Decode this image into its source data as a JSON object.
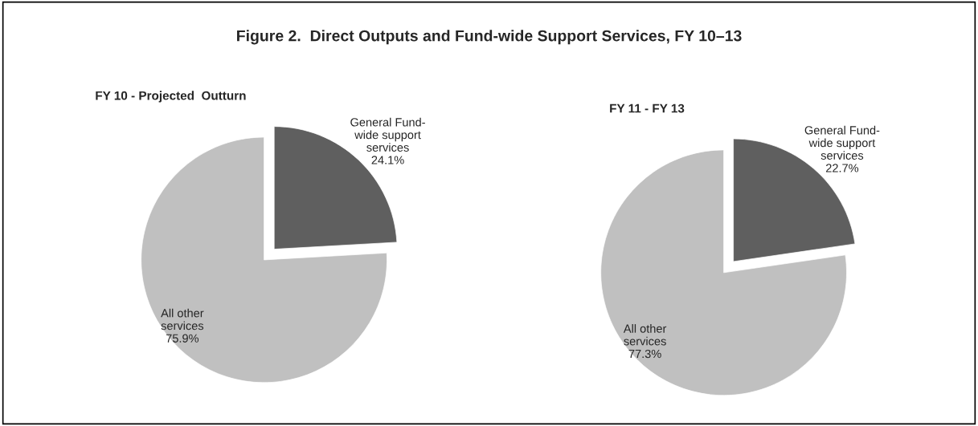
{
  "chart_data": [
    {
      "type": "pie",
      "title": "Figure 2.  Direct Outputs and Fund-wide Support Services, FY 10–13",
      "subtitle": "FY 10 - Projected  Outturn",
      "categories": [
        "General Fund-\nwide support\nservices",
        "All other\nservices"
      ],
      "values": [
        24.1,
        75.9
      ],
      "colors": [
        "#5f5f5f",
        "#c0c0c0"
      ],
      "value_labels": [
        "24.1%",
        "75.9%"
      ]
    },
    {
      "type": "pie",
      "title": "FY 11 - FY 13",
      "categories": [
        "General Fund-\nwide support\nservices",
        "All other\nservices"
      ],
      "values": [
        22.7,
        77.3
      ],
      "colors": [
        "#5f5f5f",
        "#c0c0c0"
      ],
      "value_labels": [
        "22.7%",
        "77.3%"
      ]
    }
  ]
}
